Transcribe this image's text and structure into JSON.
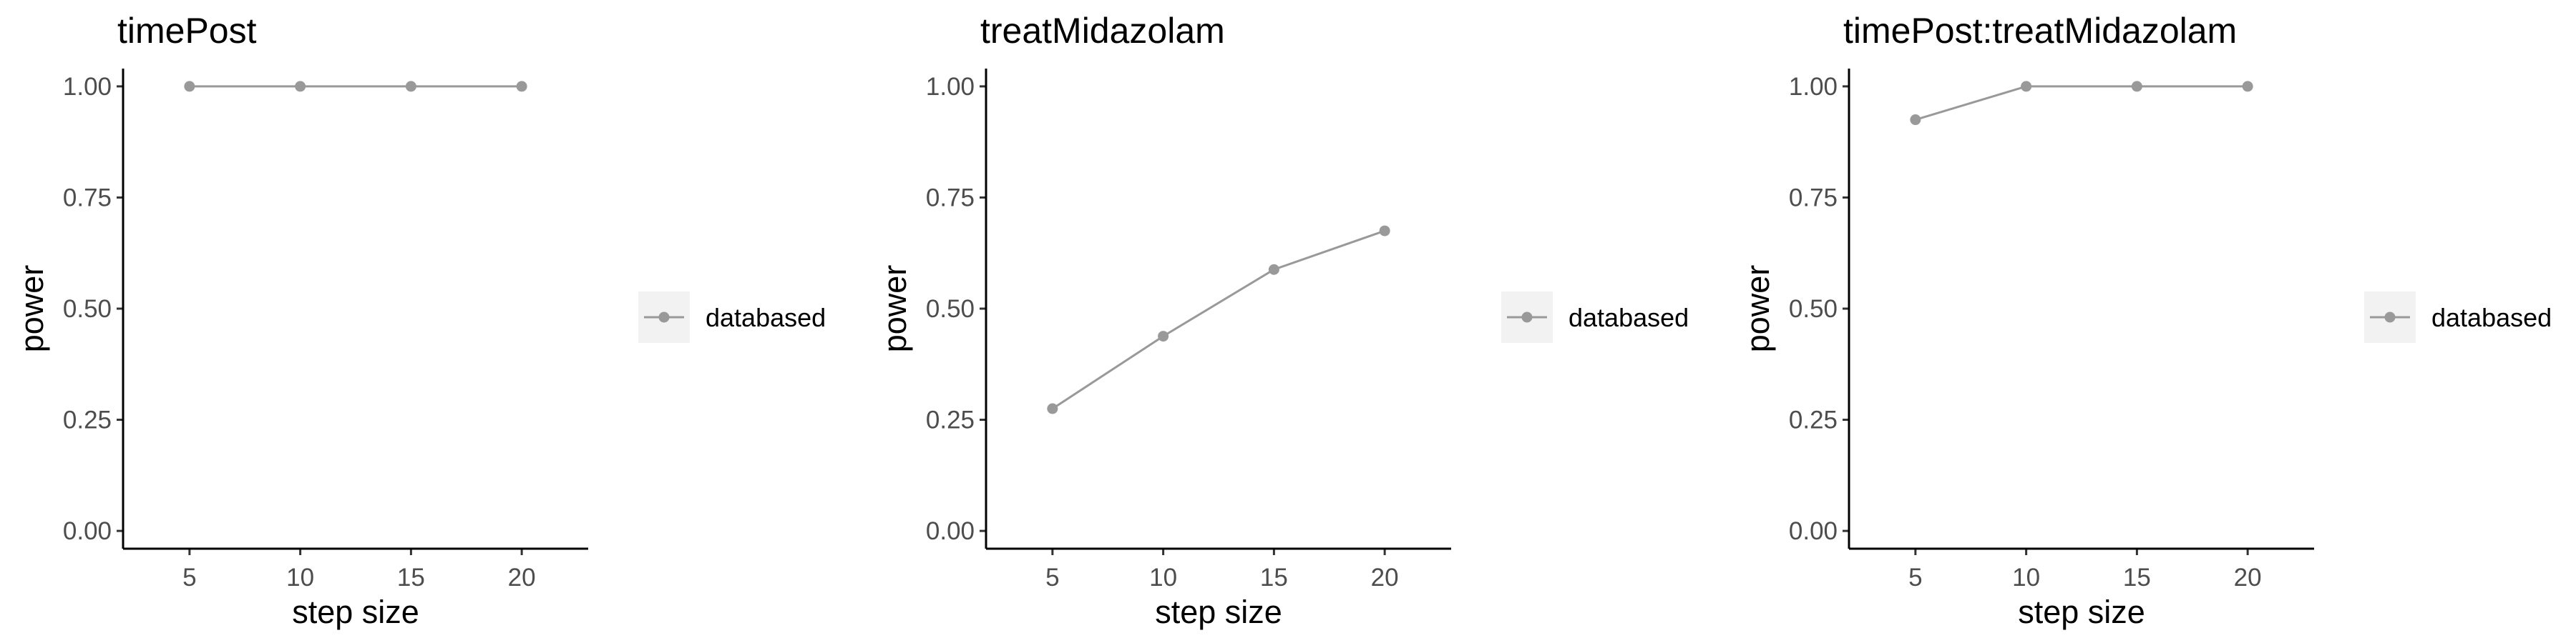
{
  "chart_data": [
    {
      "type": "line",
      "title": "timePost",
      "xlabel": "step size",
      "ylabel": "power",
      "x": [
        5,
        10,
        15,
        20
      ],
      "series": [
        {
          "name": "databased",
          "values": [
            1.0,
            1.0,
            1.0,
            1.0
          ],
          "color": "#999999"
        }
      ],
      "xticks": [
        "5",
        "10",
        "15",
        "20"
      ],
      "yticks": [
        "0.00",
        "0.25",
        "0.50",
        "0.75",
        "1.00"
      ],
      "xlim": [
        2,
        23
      ],
      "ylim": [
        -0.04,
        1.04
      ],
      "grid": false,
      "legend": "right"
    },
    {
      "type": "line",
      "title": "treatMidazolam",
      "xlabel": "step size",
      "ylabel": "power",
      "x": [
        5,
        10,
        15,
        20
      ],
      "series": [
        {
          "name": "databased",
          "values": [
            0.275,
            0.438,
            0.588,
            0.675
          ],
          "color": "#999999"
        }
      ],
      "xticks": [
        "5",
        "10",
        "15",
        "20"
      ],
      "yticks": [
        "0.00",
        "0.25",
        "0.50",
        "0.75",
        "1.00"
      ],
      "xlim": [
        2,
        23
      ],
      "ylim": [
        -0.04,
        1.04
      ],
      "grid": false,
      "legend": "right"
    },
    {
      "type": "line",
      "title": "timePost:treatMidazolam",
      "xlabel": "step size",
      "ylabel": "power",
      "x": [
        5,
        10,
        15,
        20
      ],
      "series": [
        {
          "name": "databased",
          "values": [
            0.925,
            1.0,
            1.0,
            1.0
          ],
          "color": "#999999"
        }
      ],
      "xticks": [
        "5",
        "10",
        "15",
        "20"
      ],
      "yticks": [
        "0.00",
        "0.25",
        "0.50",
        "0.75",
        "1.00"
      ],
      "xlim": [
        2,
        23
      ],
      "ylim": [
        -0.04,
        1.04
      ],
      "grid": false,
      "legend": "right"
    }
  ]
}
